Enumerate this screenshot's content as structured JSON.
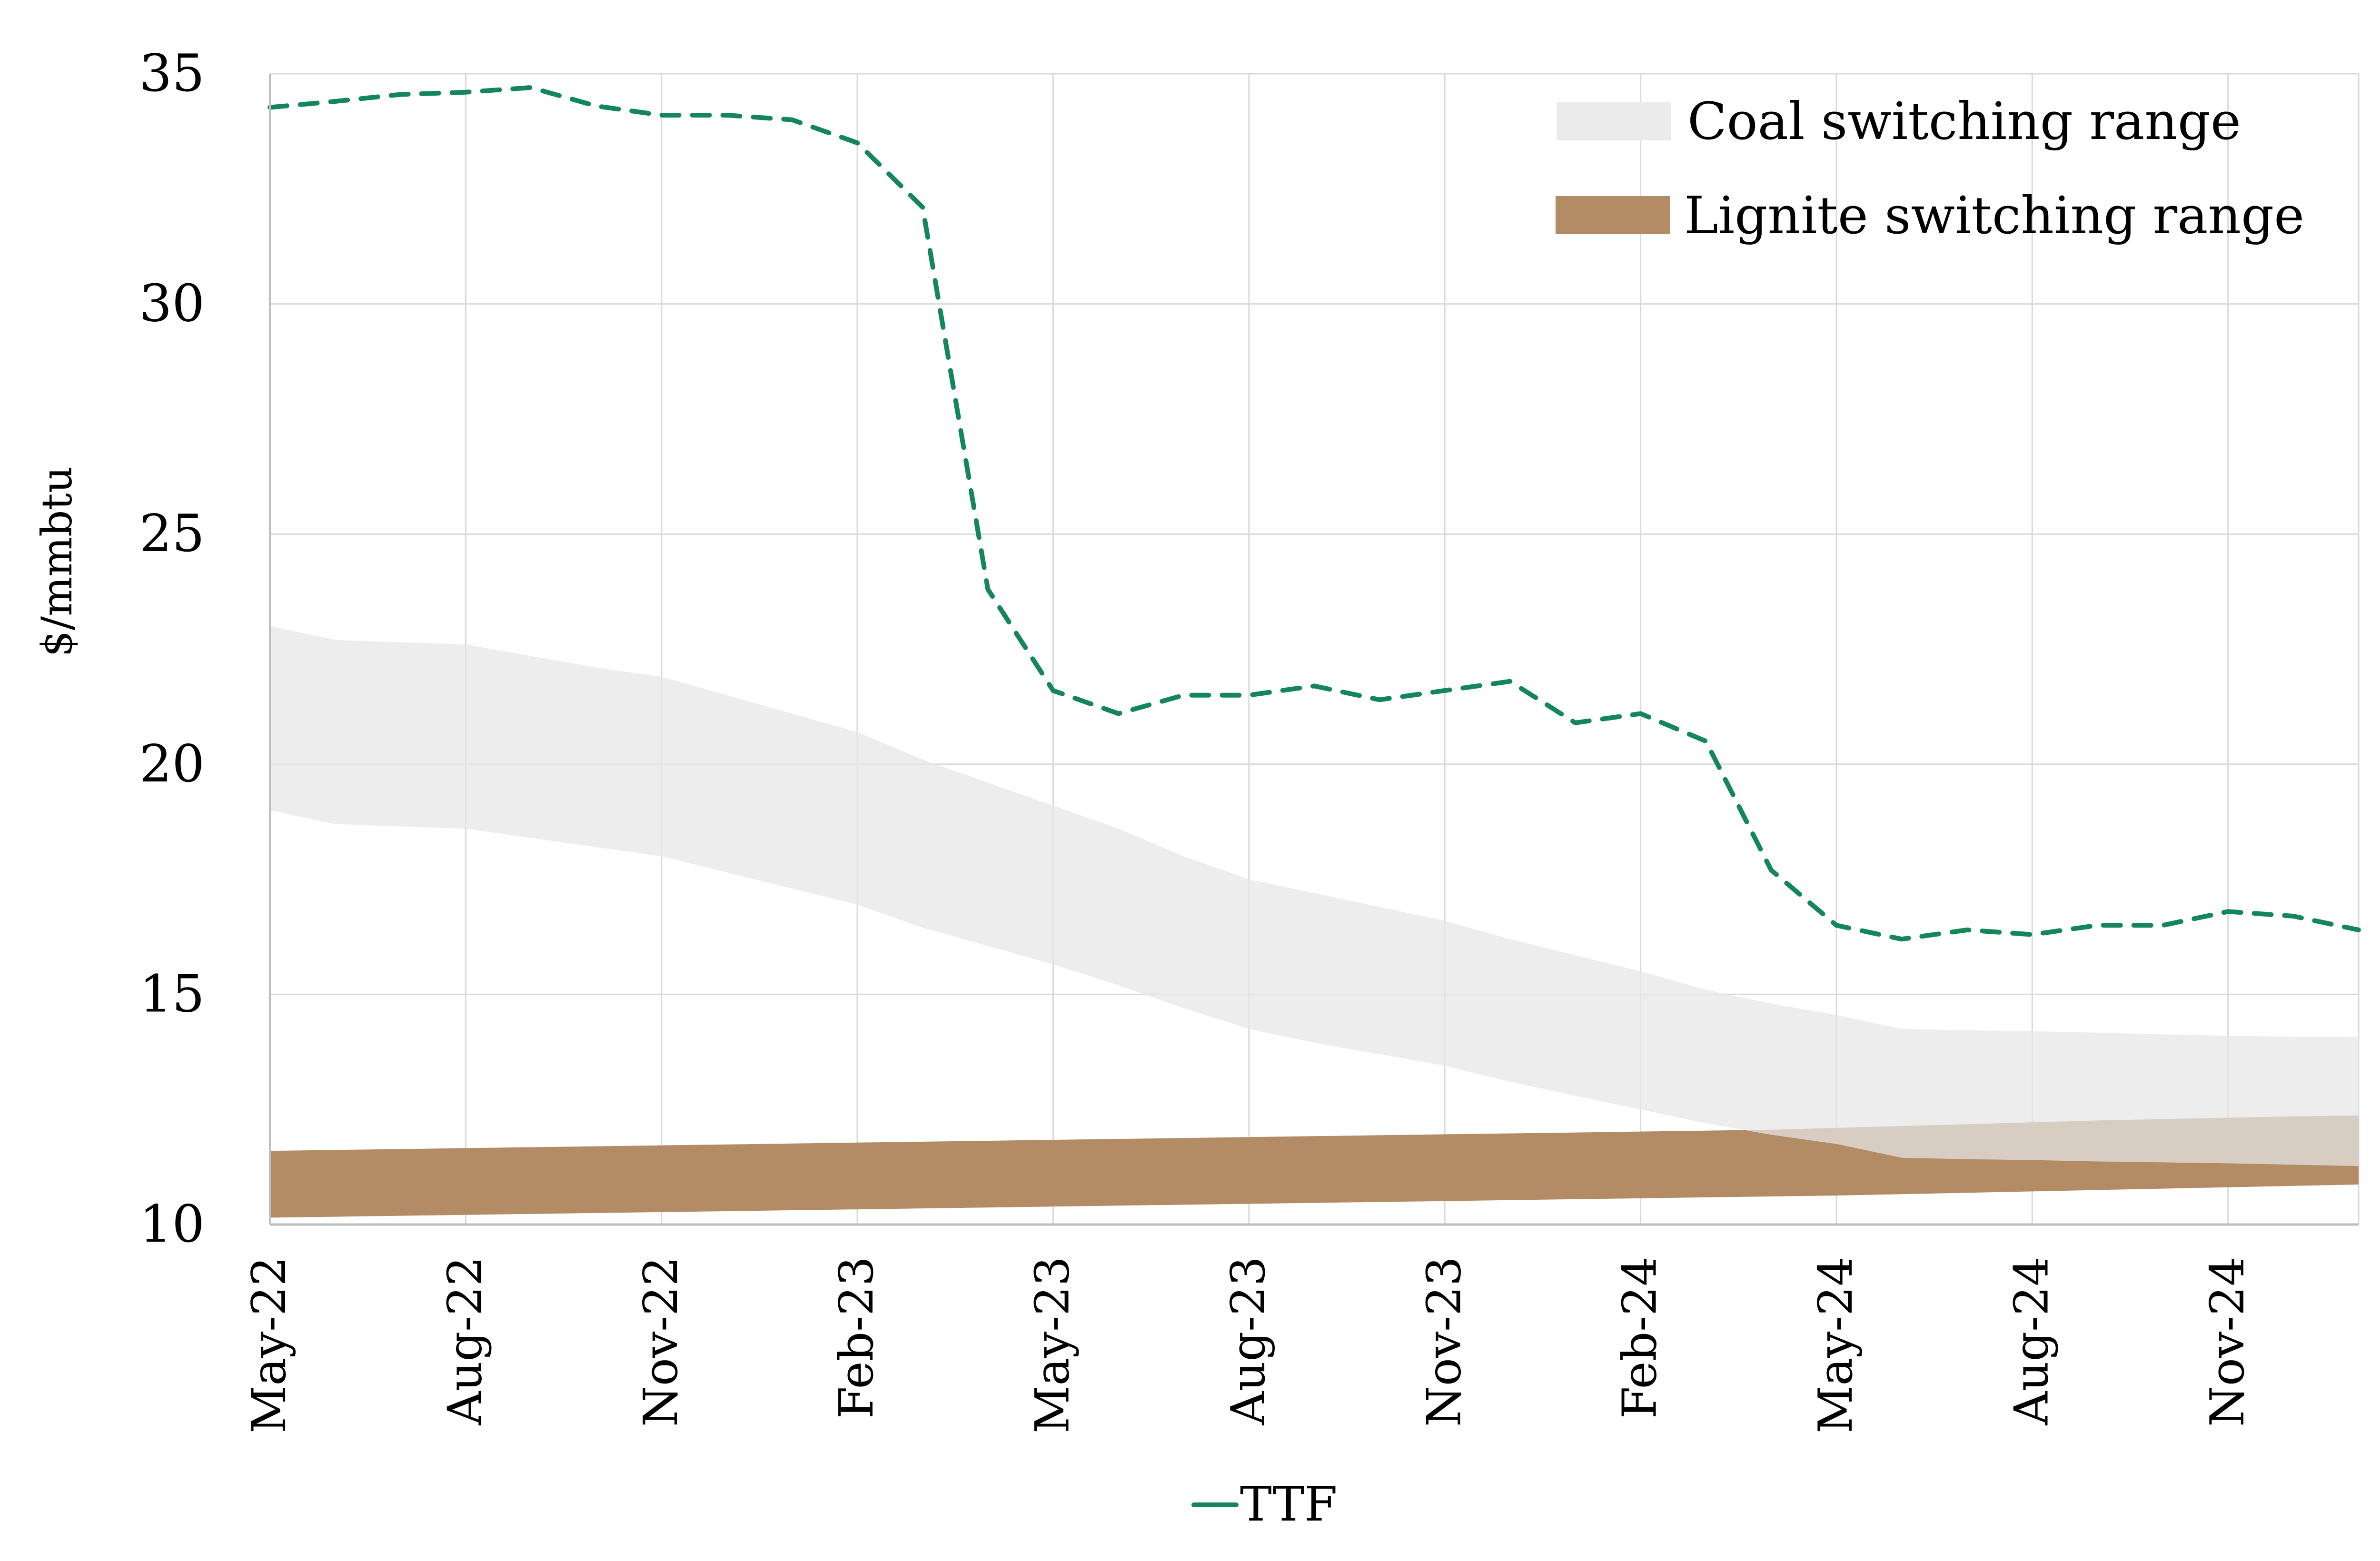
{
  "chart_data": {
    "type": "area",
    "title": "",
    "xlabel": "",
    "ylabel": "$/mmbtu",
    "ylim": [
      10,
      35
    ],
    "yticks": [
      10,
      15,
      20,
      25,
      30,
      35
    ],
    "grid": true,
    "x": [
      "May-22",
      "Jun-22",
      "Jul-22",
      "Aug-22",
      "Sep-22",
      "Oct-22",
      "Nov-22",
      "Dec-22",
      "Jan-23",
      "Feb-23",
      "Mar-23",
      "Apr-23",
      "May-23",
      "Jun-23",
      "Jul-23",
      "Aug-23",
      "Sep-23",
      "Oct-23",
      "Nov-23",
      "Dec-23",
      "Jan-24",
      "Feb-24",
      "Mar-24",
      "Apr-24",
      "May-24",
      "Jun-24",
      "Jul-24",
      "Aug-24",
      "Sep-24",
      "Oct-24",
      "Nov-24",
      "Dec-24",
      "Jan-25"
    ],
    "xtick_labels": [
      "May-22",
      "Aug-22",
      "Nov-22",
      "Feb-23",
      "May-23",
      "Aug-23",
      "Nov-23",
      "Feb-24",
      "May-24",
      "Aug-24",
      "Nov-24"
    ],
    "series": [
      {
        "name": "Coal switching range",
        "kind": "band",
        "color": "#e6e6e6",
        "upper": [
          23.0,
          22.7,
          22.65,
          22.6,
          22.35,
          22.1,
          21.9,
          21.5,
          21.1,
          20.7,
          20.1,
          19.6,
          19.1,
          18.6,
          18.0,
          17.5,
          17.2,
          16.9,
          16.6,
          16.2,
          15.85,
          15.5,
          15.1,
          14.8,
          14.55,
          14.25,
          14.22,
          14.2,
          14.17,
          14.13,
          14.1,
          14.08,
          14.07
        ],
        "lower": [
          19.0,
          18.7,
          18.65,
          18.6,
          18.4,
          18.2,
          18.0,
          17.65,
          17.3,
          16.95,
          16.45,
          16.05,
          15.65,
          15.2,
          14.7,
          14.25,
          13.95,
          13.7,
          13.45,
          13.1,
          12.8,
          12.5,
          12.2,
          11.95,
          11.75,
          11.45,
          11.42,
          11.4,
          11.37,
          11.35,
          11.33,
          11.3,
          11.27
        ]
      },
      {
        "name": "Lignite switching range",
        "kind": "band",
        "color": "#b38b64",
        "upper": [
          11.6,
          11.62,
          11.64,
          11.66,
          11.68,
          11.7,
          11.72,
          11.74,
          11.76,
          11.78,
          11.8,
          11.82,
          11.84,
          11.86,
          11.88,
          11.9,
          11.92,
          11.94,
          11.96,
          11.98,
          12.0,
          12.02,
          12.04,
          12.06,
          12.1,
          12.14,
          12.18,
          12.22,
          12.26,
          12.29,
          12.32,
          12.35,
          12.37
        ],
        "lower": [
          10.15,
          10.17,
          10.19,
          10.21,
          10.23,
          10.25,
          10.27,
          10.29,
          10.31,
          10.33,
          10.35,
          10.37,
          10.39,
          10.41,
          10.43,
          10.45,
          10.47,
          10.49,
          10.51,
          10.53,
          10.55,
          10.57,
          10.59,
          10.61,
          10.63,
          10.66,
          10.69,
          10.72,
          10.75,
          10.78,
          10.81,
          10.84,
          10.87
        ]
      },
      {
        "name": "TTF",
        "kind": "line",
        "style": "dashed",
        "color": "#13865a",
        "values": [
          34.27,
          34.4,
          34.55,
          34.6,
          34.7,
          34.3,
          34.1,
          34.1,
          34.0,
          33.5,
          32.1,
          23.8,
          21.6,
          21.1,
          21.5,
          21.5,
          21.7,
          21.4,
          21.6,
          21.8,
          20.9,
          21.1,
          20.5,
          17.7,
          16.5,
          16.2,
          16.4,
          16.3,
          16.5,
          16.5,
          16.8,
          16.7,
          16.4
        ]
      }
    ],
    "legend": {
      "top": [
        {
          "label": "Coal switching range",
          "color": "#ebebeb"
        },
        {
          "label": "Lignite switching range",
          "color": "#b38b64"
        }
      ],
      "top_placement": "top-right",
      "bottom": [
        {
          "label": "TTF",
          "color": "#13865a"
        }
      ],
      "bottom_placement": "bottom-center"
    }
  }
}
